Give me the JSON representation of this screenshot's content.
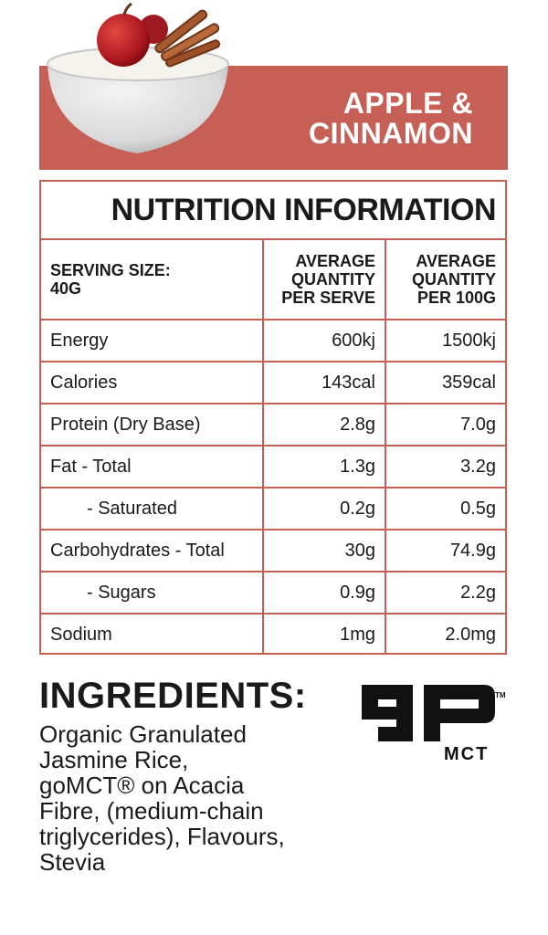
{
  "header": {
    "flavour_line1": "APPLE &",
    "flavour_line2": "CINNAMON",
    "banner_color": "#c65f55"
  },
  "nutrition": {
    "title": "NUTRITION INFORMATION",
    "serving_size_line1": "SERVING SIZE:",
    "serving_size_line2": "40G",
    "col_serve_line1": "AVERAGE",
    "col_serve_line2": "QUANTITY",
    "col_serve_line3": "PER SERVE",
    "col_100g_line1": "AVERAGE",
    "col_100g_line2": "QUANTITY",
    "col_100g_line3": "PER 100G",
    "rows": [
      {
        "label": "Energy",
        "serve": "600kj",
        "per100": "1500kj"
      },
      {
        "label": "Calories",
        "serve": "143cal",
        "per100": "359cal"
      },
      {
        "label": "Protein (Dry Base)",
        "serve": "2.8g",
        "per100": "7.0g"
      },
      {
        "label": "Fat - Total",
        "serve": "1.3g",
        "per100": "3.2g"
      },
      {
        "label": "- Saturated",
        "serve": "0.2g",
        "per100": "0.5g"
      },
      {
        "label": "Carbohydrates - Total",
        "serve": "30g",
        "per100": "74.9g"
      },
      {
        "label": "- Sugars",
        "serve": "0.9g",
        "per100": "2.2g"
      },
      {
        "label": "Sodium",
        "serve": "1mg",
        "per100": "2.0mg"
      }
    ]
  },
  "ingredients": {
    "title": "INGREDIENTS:",
    "line1": "Organic Granulated",
    "line2": "Jasmine Rice,",
    "line3": "goMCT® on Acacia",
    "line4": "Fibre, (medium-chain",
    "line5": "triglycerides), Flavours,",
    "line6": "Stevia"
  },
  "logo": {
    "brand_text": "MCT",
    "trademark": "TM"
  }
}
